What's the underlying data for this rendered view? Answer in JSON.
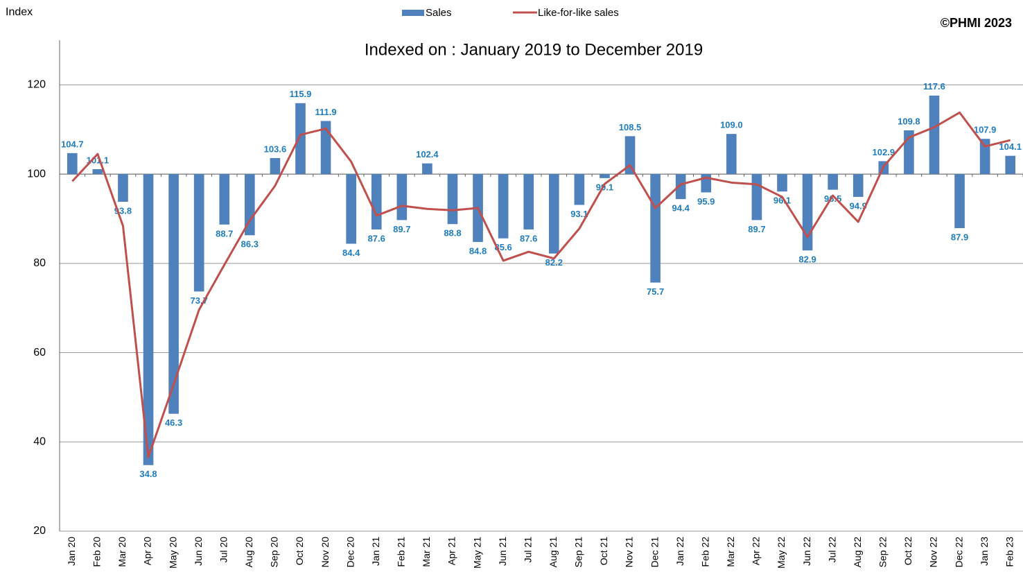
{
  "chart_data": {
    "type": "bar_line",
    "title": "Indexed on : January 2019 to December 2019",
    "y_label": "Index",
    "copyright": "©PHMI 2023",
    "categories": [
      "Jan 20",
      "Feb 20",
      "Mar 20",
      "Apr 20",
      "May 20",
      "Jun 20",
      "Jul 20",
      "Aug 20",
      "Sep 20",
      "Oct 20",
      "Nov 20",
      "Dec 20",
      "Jan 21",
      "Feb 21",
      "Mar 21",
      "Apr 21",
      "May 21",
      "Jun 21",
      "Jul 21",
      "Aug 21",
      "Sep 21",
      "Oct 21",
      "Nov 21",
      "Dec 21",
      "Jan 22",
      "Feb 22",
      "Mar 22",
      "Apr 22",
      "May 22",
      "Jun 22",
      "Jul 22",
      "Aug 22",
      "Sep 22",
      "Oct 22",
      "Nov 22",
      "Dec 22",
      "Jan 23",
      "Feb 23"
    ],
    "series": [
      {
        "name": "Sales",
        "type": "bar",
        "color": "#4f81bd",
        "values": [
          104.7,
          101.1,
          93.8,
          34.8,
          46.3,
          73.7,
          88.7,
          86.3,
          103.6,
          115.9,
          111.9,
          84.4,
          87.6,
          89.7,
          102.4,
          88.8,
          84.8,
          85.6,
          87.6,
          82.2,
          93.1,
          99.1,
          108.5,
          75.7,
          94.4,
          95.9,
          109.0,
          89.7,
          96.1,
          82.9,
          96.5,
          94.9,
          102.9,
          109.8,
          117.6,
          87.9,
          107.9,
          104.1
        ],
        "value_labels": [
          "104.7",
          "101.1",
          "93.8",
          "34.8",
          "46.3",
          "73.7",
          "88.7",
          "86.3",
          "103.6",
          "115.9",
          "111.9",
          "84.4",
          "87.6",
          "89.7",
          "102.4",
          "88.8",
          "84.8",
          "85.6",
          "87.6",
          "82.2",
          "93.1",
          "99.1",
          "108.5",
          "75.7",
          "94.4",
          "95.9",
          "109.0",
          "89.7",
          "96.1",
          "82.9",
          "96.5",
          "94.9",
          "102.9",
          "109.8",
          "117.6",
          "87.9",
          "107.9",
          "104.1"
        ]
      },
      {
        "name": "Like-for-like sales",
        "type": "line",
        "color": "#c0504d",
        "values": [
          98.4,
          104.5,
          88.4,
          36.6,
          52.9,
          69.6,
          79.7,
          89.6,
          97.4,
          108.8,
          110.2,
          102.8,
          90.7,
          92.9,
          92.2,
          91.9,
          92.4,
          80.6,
          82.6,
          81.1,
          87.8,
          97.8,
          102.0,
          92.4,
          97.7,
          99.2,
          98.1,
          97.7,
          94.9,
          85.9,
          95.2,
          89.3,
          101.7,
          108.2,
          110.5,
          113.8,
          106.2,
          107.6
        ]
      }
    ],
    "baseline": 100,
    "ylim": [
      20,
      130
    ],
    "yticks": [
      20,
      40,
      60,
      80,
      100,
      120
    ],
    "grid": true
  }
}
